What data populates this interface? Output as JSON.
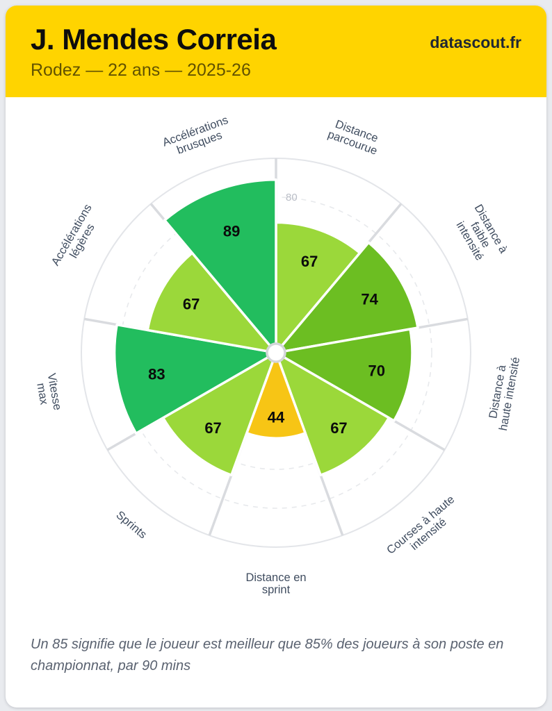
{
  "header": {
    "title": "J. Mendes Correia",
    "subtitle": "Rodez — 22 ans — 2025-26",
    "brand": "datascout.fr",
    "bg_color": "#ffd400",
    "brand_color": "#1f2733"
  },
  "chart_data": {
    "type": "pizza",
    "title": "",
    "scale": {
      "min": 0,
      "max": 100,
      "grid_interval": 20,
      "visible_tick_label": "80",
      "visible_tick_value": 80
    },
    "legend_position": "none",
    "grid": "dashed-circles",
    "slices": [
      {
        "label": "Distance parcourue",
        "label_lines": [
          "Distance",
          "parcourue"
        ],
        "value": 67,
        "color": "#9bd83a"
      },
      {
        "label": "Distance à faible intensité",
        "label_lines": [
          "Distance à",
          "faible",
          "intensité"
        ],
        "value": 74,
        "color": "#6cbe22"
      },
      {
        "label": "Distance à haute intensité",
        "label_lines": [
          "Distance à",
          "haute intensité"
        ],
        "value": 70,
        "color": "#6cbe22"
      },
      {
        "label": "Courses à haute intensité",
        "label_lines": [
          "Courses à haute",
          "intensité"
        ],
        "value": 67,
        "color": "#9bd83a"
      },
      {
        "label": "Distance en sprint",
        "label_lines": [
          "Distance en",
          "sprint"
        ],
        "value": 44,
        "color": "#f7c515"
      },
      {
        "label": "Sprints",
        "label_lines": [
          "Sprints"
        ],
        "value": 67,
        "color": "#9bd83a"
      },
      {
        "label": "Vitesse max",
        "label_lines": [
          "Vitesse",
          "max"
        ],
        "value": 83,
        "color": "#22bd5e"
      },
      {
        "label": "Accélérations légères",
        "label_lines": [
          "Accélérations",
          "légères"
        ],
        "value": 67,
        "color": "#9bd83a"
      },
      {
        "label": "Accélérations brusques",
        "label_lines": [
          "Accélérations",
          "brusques"
        ],
        "value": 89,
        "color": "#22bd5e"
      }
    ],
    "colors": {
      "grid_dashed": "#e7e9ec",
      "outer_ring": "#e3e5e9",
      "spoke": "#d9dbdf",
      "slice_outline": "#ffffff",
      "tick_label": "#b9bdc6",
      "value_label": "#0b0b0b",
      "category_label": "#3f4c5f",
      "center_fill": "#ffffff",
      "center_ring": "#d4d6da"
    }
  },
  "footer": {
    "note": "Un 85 signifie que le joueur est meilleur que 85% des joueurs à son poste en championnat, par 90 mins"
  }
}
